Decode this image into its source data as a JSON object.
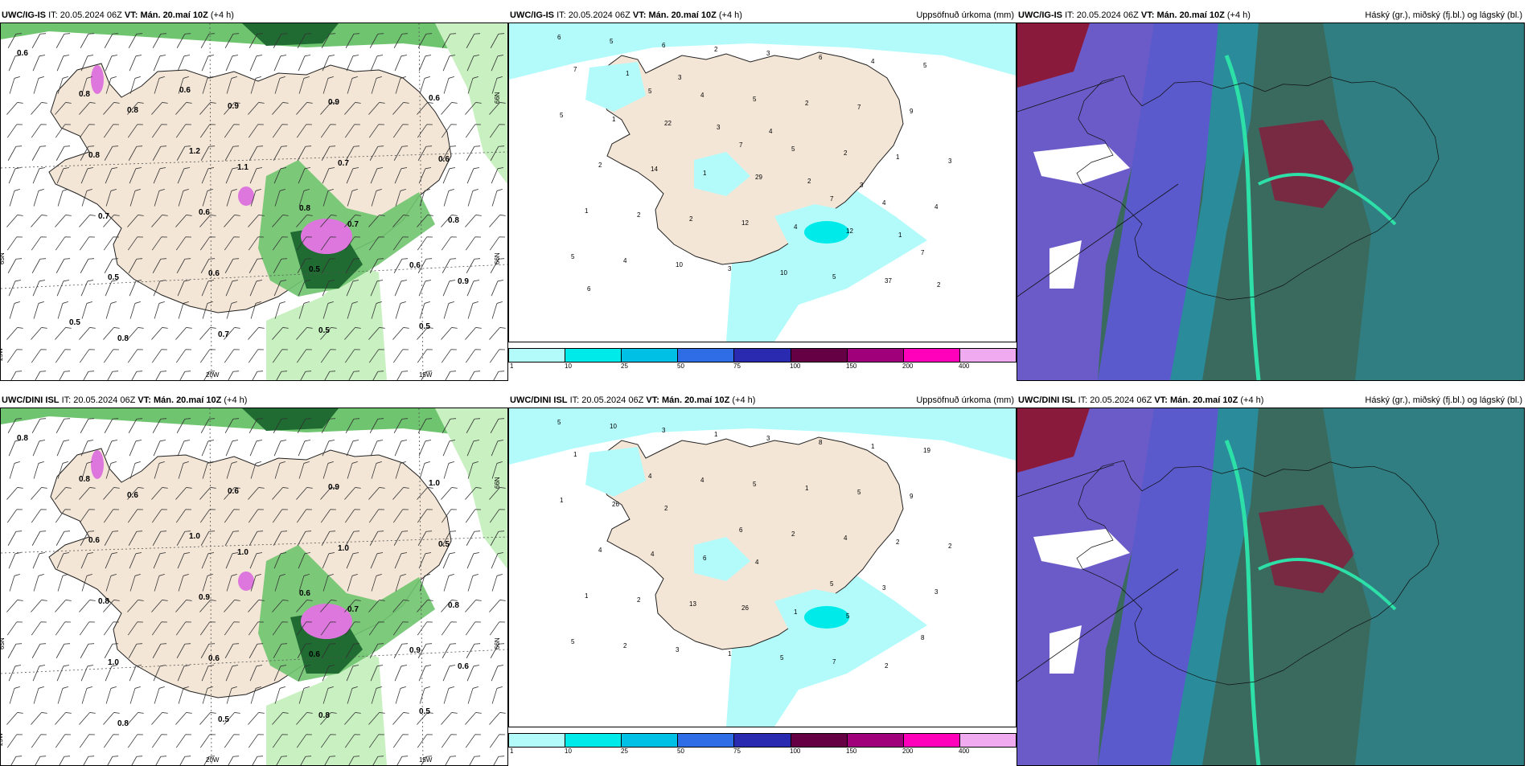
{
  "panels": [
    {
      "id": "igis-wind",
      "header_model": "UWC/IG-IS",
      "header_it_label": "IT:",
      "header_it": "20.05.2024 06Z",
      "header_vt_label": "VT:",
      "header_vt": "Mán. 20.maí 10Z",
      "header_lead": "(+4 h)",
      "header_right": "",
      "axis_labels": [
        "20W",
        "15W",
        "65N",
        "66N",
        "66N",
        "25W"
      ],
      "values": [
        "0.6",
        "0.8",
        "1.1",
        "0.7",
        "0.9",
        "0.8",
        "0.9",
        "0.7",
        "0.8",
        "0.5",
        "0.7",
        "0.9",
        "0.6",
        "0.7",
        "0.6",
        "0.5",
        "0.6",
        "0.8",
        "0.6",
        "0.5",
        "0.5",
        "0.8",
        "1.2",
        "0.8",
        "0.6",
        "0.5",
        "0.6"
      ]
    },
    {
      "id": "igis-precip",
      "header_model": "UWC/IG-IS",
      "header_it_label": "IT:",
      "header_it": "20.05.2024 06Z",
      "header_vt_label": "VT:",
      "header_vt": "Mán. 20.maí 10Z",
      "header_lead": "(+4 h)",
      "header_right": "Uppsöfnuð úrkoma (mm)",
      "values": [
        "6",
        "5",
        "7",
        "7",
        "7",
        "5",
        "4",
        "5",
        "4",
        "5",
        "6",
        "5",
        "2",
        "4",
        "4",
        "2",
        "2",
        "1",
        "1",
        "10",
        "3",
        "7",
        "3",
        "2",
        "3",
        "6",
        "9",
        "2",
        "2",
        "10",
        "4",
        "5",
        "14",
        "12",
        "5",
        "5",
        "1",
        "1",
        "4",
        "37",
        "7",
        "22",
        "29",
        "12",
        "2",
        "1",
        "3",
        "2",
        "1",
        "6",
        "3",
        "4",
        "3"
      ]
    },
    {
      "id": "igis-cloud",
      "header_model": "UWC/IG-IS",
      "header_it_label": "IT:",
      "header_it": "20.05.2024 06Z",
      "header_vt_label": "VT:",
      "header_vt": "Mán. 20.maí 10Z",
      "header_lead": "(+4 h)",
      "header_right": "Háský (gr.), miðský (fj.bl.) og lágský (bl.)"
    },
    {
      "id": "dini-wind",
      "header_model": "UWC/DINI ISL",
      "header_it_label": "IT:",
      "header_it": "20.05.2024 06Z",
      "header_vt_label": "VT:",
      "header_vt": "Mán. 20.maí 10Z",
      "header_lead": "(+4 h)",
      "header_right": "",
      "axis_labels": [
        "20W",
        "15W",
        "65N",
        "66N",
        "66N",
        "25W"
      ],
      "values": [
        "0.8",
        "0.6",
        "1.0",
        "0.7",
        "0.6",
        "0.8",
        "0.6",
        "1.0",
        "0.8",
        "1.0",
        "0.5",
        "0.9",
        "0.5",
        "0.8",
        "0.6",
        "0.8",
        "1.0",
        "0.6",
        "0.9",
        "0.6",
        "0.5",
        "0.8",
        "1.0",
        "0.6",
        "0.9"
      ]
    },
    {
      "id": "dini-precip",
      "header_model": "UWC/DINI ISL",
      "header_it_label": "IT:",
      "header_it": "20.05.2024 06Z",
      "header_vt_label": "VT:",
      "header_vt": "Mán. 20.maí 10Z",
      "header_lead": "(+4 h)",
      "header_right": "Uppsöfnuð úrkoma (mm)",
      "values": [
        "5",
        "4",
        "6",
        "5",
        "8",
        "10",
        "4",
        "2",
        "3",
        "5",
        "3",
        "5",
        "4",
        "3",
        "2",
        "1",
        "1",
        "2",
        "1",
        "3",
        "3",
        "5",
        "2",
        "2",
        "1",
        "8",
        "9",
        "4",
        "13",
        "5",
        "1",
        "1",
        "4",
        "26",
        "7",
        "19",
        "26",
        "6",
        "1",
        "2",
        "1",
        "2",
        "4",
        "5"
      ]
    },
    {
      "id": "dini-cloud",
      "header_model": "UWC/DINI ISL",
      "header_it_label": "IT:",
      "header_it": "20.05.2024 06Z",
      "header_vt_label": "VT:",
      "header_vt": "Mán. 20.maí 10Z",
      "header_lead": "(+4 h)",
      "header_right": "Háský (gr.), miðský (fj.bl.) og lágský (bl.)"
    }
  ],
  "legend": {
    "ticks": [
      "1",
      "10",
      "25",
      "50",
      "75",
      "100",
      "150",
      "200",
      "400"
    ],
    "colors": [
      "#b3fbfb",
      "#00eaea",
      "#00c0e6",
      "#2f6de6",
      "#2a2ab0",
      "#660044",
      "#a0007a",
      "#ff00bb",
      "#f0aaf0"
    ]
  },
  "colors": {
    "land": "#f4e6d6",
    "wind_green_light": "#c8f0c0",
    "wind_green_mid": "#6fc46f",
    "wind_green_dark": "#1f6b32",
    "wind_magenta": "#dd77dd",
    "precip_cyan": "#b3fbfb",
    "precip_cyan_mid": "#00eaea",
    "cloud_low_blue": "#6b5bc8",
    "cloud_mid_teal": "#2a8c9a",
    "cloud_high_green": "#3a6a5e",
    "cloud_red": "#8a1a3c",
    "cloud_aqua": "#2de0a8"
  }
}
